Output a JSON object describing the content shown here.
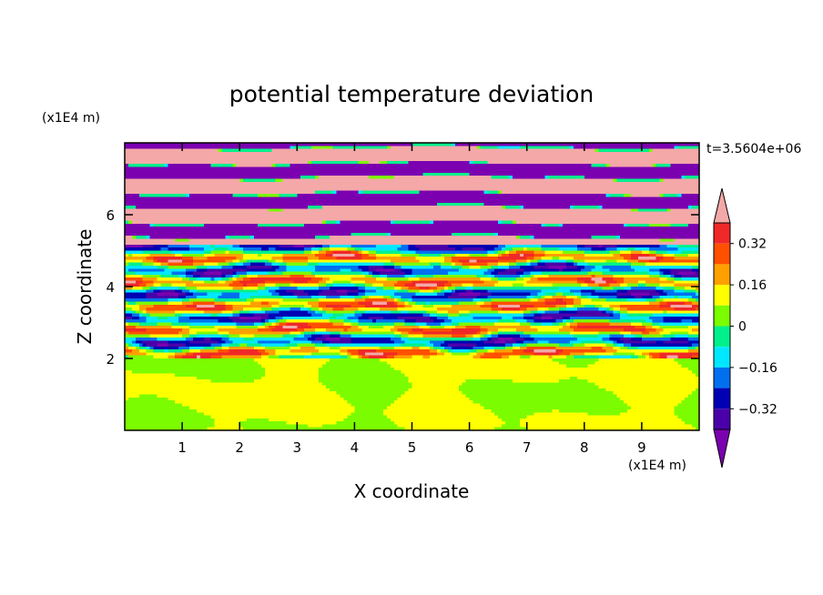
{
  "chart_data": {
    "type": "heatmap",
    "title": "potential temperature deviation",
    "xlabel": "X coordinate",
    "ylabel": "Z coordinate",
    "x_unit": "(x1E4 m)",
    "y_unit": "(x1E4 m)",
    "time_label": "t=3.5604e+06",
    "xlim": [
      0,
      10
    ],
    "ylim": [
      0,
      8
    ],
    "x_ticks": [
      1,
      2,
      3,
      4,
      5,
      6,
      7,
      8,
      9
    ],
    "y_ticks": [
      2,
      4,
      6
    ],
    "colorbar": {
      "levels": [
        -0.4,
        -0.32,
        -0.24,
        -0.16,
        -0.08,
        0,
        0.08,
        0.16,
        0.24,
        0.32,
        0.4
      ],
      "labels": [
        "0.32",
        "0.16",
        "0",
        "−0.16",
        "−0.32"
      ],
      "label_values": [
        0.32,
        0.16,
        0,
        -0.16,
        -0.32
      ],
      "colors": [
        "#7B00B0",
        "#4A00A8",
        "#0000B4",
        "#0070F0",
        "#00E8FF",
        "#00F08C",
        "#7CFC00",
        "#FFFF00",
        "#FFA000",
        "#FF5000",
        "#F02828",
        "#F4A8A8"
      ],
      "extend": "both"
    },
    "regimes": [
      {
        "z_range": [
          0,
          2
        ],
        "description_values": [
          0,
          0.08
        ]
      },
      {
        "z_range": [
          2,
          5
        ],
        "description_values": [
          -0.4,
          0.4
        ]
      },
      {
        "z_range": [
          5,
          8
        ],
        "description_values": [
          -0.4,
          0.4
        ]
      }
    ]
  }
}
